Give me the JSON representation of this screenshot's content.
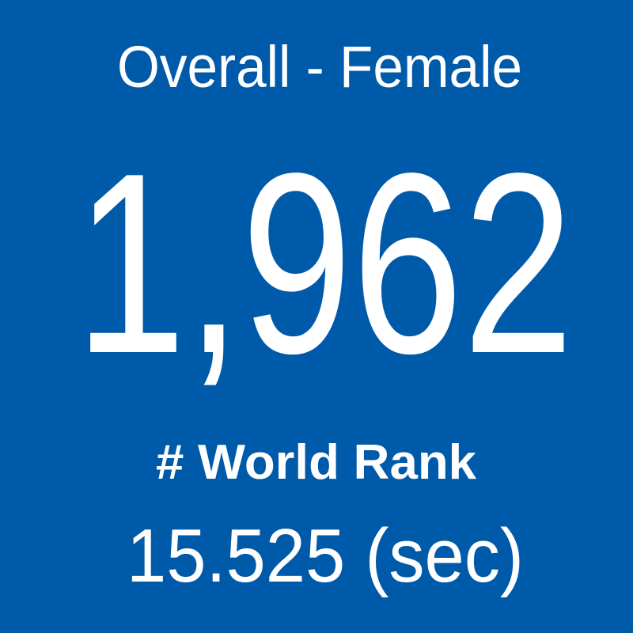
{
  "tile": {
    "title": "Overall - Female",
    "value": "1,962",
    "label": "# World Rank",
    "time": "15.525 (sec)"
  }
}
